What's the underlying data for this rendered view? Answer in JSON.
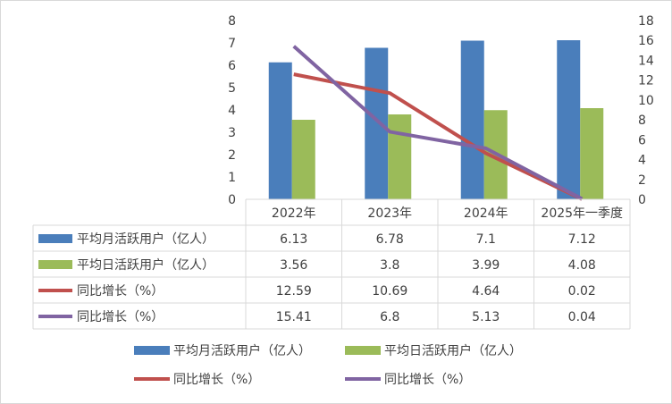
{
  "chart_data": {
    "type": "bar",
    "categories": [
      "2022年",
      "2023年",
      "2024年",
      "2025年一季度"
    ],
    "left_axis": {
      "ylim": [
        0,
        8
      ],
      "ticks": [
        "0",
        "1",
        "2",
        "3",
        "4",
        "5",
        "6",
        "7",
        "8"
      ]
    },
    "right_axis": {
      "ylim": [
        0,
        18
      ],
      "ticks": [
        "0",
        "2",
        "4",
        "6",
        "8",
        "10",
        "12",
        "14",
        "16",
        "18"
      ]
    },
    "series": [
      {
        "name": "平均月活跃用户（亿人）",
        "kind": "bar",
        "axis": "left",
        "color": "#4a7ebb",
        "values": [
          6.13,
          6.78,
          7.1,
          7.12
        ],
        "labels": [
          "6.13",
          "6.78",
          "7.1",
          "7.12"
        ]
      },
      {
        "name": "平均日活跃用户（亿人）",
        "kind": "bar",
        "axis": "left",
        "color": "#9bbb59",
        "values": [
          3.56,
          3.8,
          3.99,
          4.08
        ],
        "labels": [
          "3.56",
          "3.8",
          "3.99",
          "4.08"
        ]
      },
      {
        "name": "同比增长（%）",
        "kind": "line",
        "axis": "right",
        "color": "#c0504d",
        "values": [
          12.59,
          10.69,
          4.64,
          0.02
        ],
        "labels": [
          "12.59",
          "10.69",
          "4.64",
          "0.02"
        ]
      },
      {
        "name": "同比增长（%）",
        "kind": "line",
        "axis": "right",
        "color": "#8064a2",
        "values": [
          15.41,
          6.8,
          5.13,
          0.04
        ],
        "labels": [
          "15.41",
          "6.8",
          "5.13",
          "0.04"
        ]
      }
    ],
    "data_table": true,
    "grid": false,
    "legend": "bottom"
  }
}
